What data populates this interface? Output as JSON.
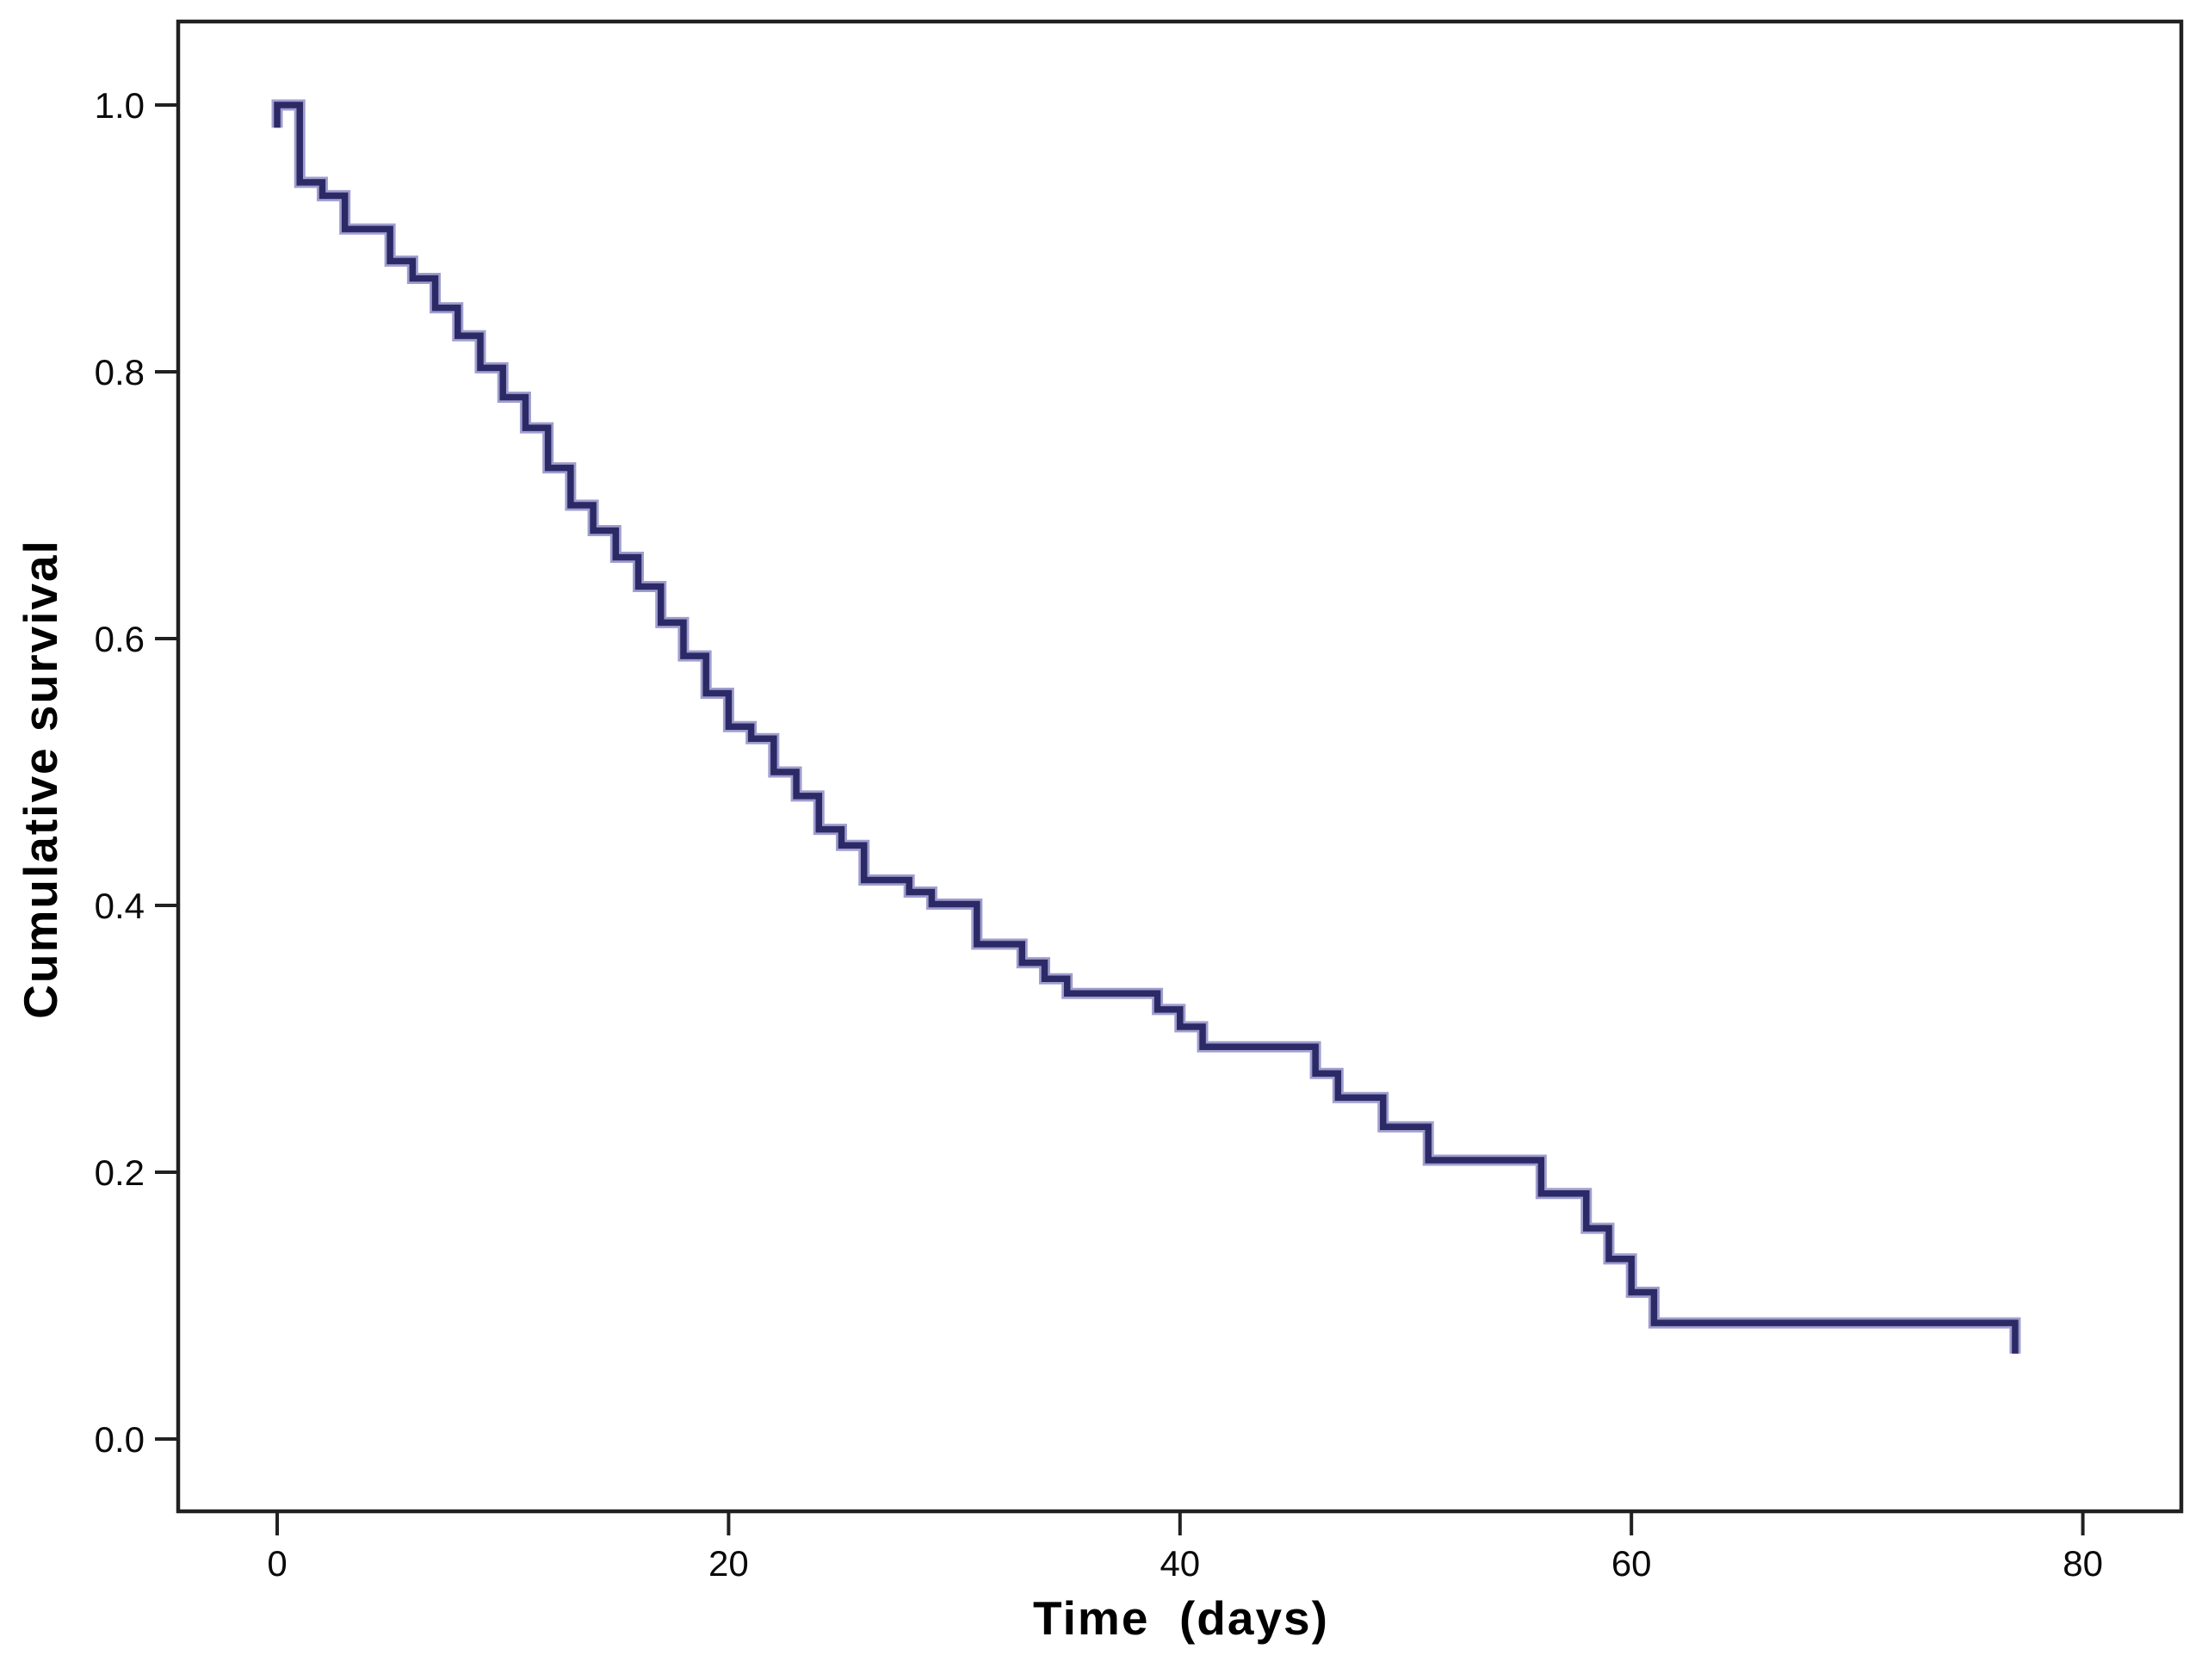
{
  "figure": {
    "background_color": "#ffffff",
    "plot_border_color": "#212121",
    "tick_color": "#212121",
    "curve_color": "#2c2a66",
    "curve_halo_color": "#8f8dc6"
  },
  "chart_data": {
    "type": "line",
    "subtype": "kaplan-meier-step-curve",
    "title": "",
    "xlabel": "Time  (days)",
    "ylabel": "Cumulative survival",
    "grid": false,
    "legend": null,
    "xlim": [
      -4.4,
      84.4
    ],
    "ylim": [
      -0.054,
      1.063
    ],
    "x_ticks": [
      0,
      20,
      40,
      60,
      80
    ],
    "x_tick_labels": [
      "0",
      "20",
      "40",
      "60",
      "80"
    ],
    "y_ticks": [
      0.0,
      0.2,
      0.4,
      0.6,
      0.8,
      1.0
    ],
    "y_tick_labels": [
      "0.0",
      "0.2",
      "0.4",
      "0.6",
      "0.8",
      "1.0"
    ],
    "series": [
      {
        "name": "Cumulative survival",
        "start": {
          "time": 0,
          "survival": 1.0,
          "start_tick_drop_to": 0.983
        },
        "steps": [
          [
            1,
            0.942
          ],
          [
            2,
            0.932
          ],
          [
            3,
            0.907
          ],
          [
            5,
            0.883
          ],
          [
            6,
            0.87
          ],
          [
            7,
            0.848
          ],
          [
            8,
            0.827
          ],
          [
            9,
            0.803
          ],
          [
            10,
            0.781
          ],
          [
            11,
            0.758
          ],
          [
            12,
            0.728
          ],
          [
            13,
            0.7
          ],
          [
            14,
            0.681
          ],
          [
            15,
            0.661
          ],
          [
            16,
            0.639
          ],
          [
            17,
            0.612
          ],
          [
            18,
            0.587
          ],
          [
            19,
            0.559
          ],
          [
            20,
            0.534
          ],
          [
            21,
            0.525
          ],
          [
            22,
            0.5
          ],
          [
            23,
            0.482
          ],
          [
            24,
            0.457
          ],
          [
            25,
            0.445
          ],
          [
            26,
            0.419
          ],
          [
            28,
            0.41
          ],
          [
            29,
            0.401
          ],
          [
            31,
            0.371
          ],
          [
            33,
            0.357
          ],
          [
            34,
            0.345
          ],
          [
            35,
            0.334
          ],
          [
            39,
            0.322
          ],
          [
            40,
            0.309
          ],
          [
            41,
            0.294
          ],
          [
            46,
            0.274
          ],
          [
            47,
            0.256
          ],
          [
            49,
            0.234
          ],
          [
            51,
            0.209
          ],
          [
            56,
            0.184
          ],
          [
            58,
            0.158
          ],
          [
            59,
            0.135
          ],
          [
            60,
            0.11
          ],
          [
            61,
            0.087
          ]
        ],
        "end": {
          "time": 77,
          "survival": 0.087,
          "end_tick_drop_to": 0.064
        }
      }
    ]
  }
}
